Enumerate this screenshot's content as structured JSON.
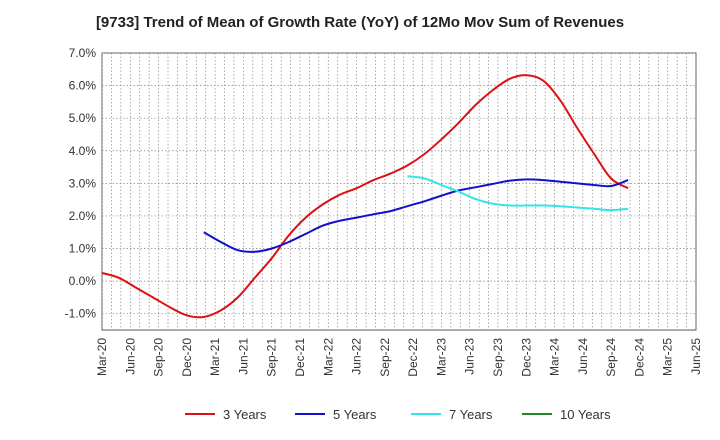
{
  "chart_data": {
    "type": "line",
    "title": "[9733]  Trend of Mean of Growth Rate (YoY) of 12Mo Mov Sum of Revenues",
    "xlabel": "",
    "ylabel": "",
    "x_ticks": [
      "Mar-20",
      "Jun-20",
      "Sep-20",
      "Dec-20",
      "Mar-21",
      "Jun-21",
      "Sep-21",
      "Dec-21",
      "Mar-22",
      "Jun-22",
      "Sep-22",
      "Dec-22",
      "Mar-23",
      "Jun-23",
      "Sep-23",
      "Dec-23",
      "Mar-24",
      "Jun-24",
      "Sep-24",
      "Dec-24",
      "Mar-25",
      "Jun-25"
    ],
    "y_ticks": [
      "-1.0%",
      "0.0%",
      "1.0%",
      "2.0%",
      "3.0%",
      "4.0%",
      "5.0%",
      "6.0%",
      "7.0%"
    ],
    "ylim": [
      -1.5,
      7.0
    ],
    "legend_position": "bottom",
    "series": [
      {
        "name": "3 Years",
        "color": "#dd1111",
        "points": [
          [
            0,
            0.25
          ],
          [
            1,
            0.1
          ],
          [
            2,
            -0.2
          ],
          [
            3,
            -0.5
          ],
          [
            4,
            -0.8
          ],
          [
            5,
            -1.05
          ],
          [
            6,
            -1.1
          ],
          [
            7,
            -0.9
          ],
          [
            8,
            -0.5
          ],
          [
            9,
            0.1
          ],
          [
            10,
            0.7
          ],
          [
            11,
            1.4
          ],
          [
            12,
            1.95
          ],
          [
            13,
            2.35
          ],
          [
            14,
            2.65
          ],
          [
            15,
            2.85
          ],
          [
            16,
            3.1
          ],
          [
            17,
            3.3
          ],
          [
            18,
            3.55
          ],
          [
            19,
            3.9
          ],
          [
            20,
            4.35
          ],
          [
            21,
            4.85
          ],
          [
            22,
            5.4
          ],
          [
            23,
            5.85
          ],
          [
            24,
            6.2
          ],
          [
            25,
            6.32
          ],
          [
            26,
            6.15
          ],
          [
            27,
            5.55
          ],
          [
            28,
            4.7
          ],
          [
            29,
            3.9
          ],
          [
            30,
            3.15
          ],
          [
            31,
            2.85
          ]
        ]
      },
      {
        "name": "5 Years",
        "color": "#1111cc",
        "points": [
          [
            6,
            1.5
          ],
          [
            7,
            1.2
          ],
          [
            8,
            0.95
          ],
          [
            9,
            0.9
          ],
          [
            10,
            1.0
          ],
          [
            11,
            1.2
          ],
          [
            12,
            1.45
          ],
          [
            13,
            1.7
          ],
          [
            14,
            1.85
          ],
          [
            15,
            1.95
          ],
          [
            16,
            2.05
          ],
          [
            17,
            2.15
          ],
          [
            18,
            2.3
          ],
          [
            19,
            2.45
          ],
          [
            20,
            2.62
          ],
          [
            21,
            2.78
          ],
          [
            22,
            2.88
          ],
          [
            23,
            2.98
          ],
          [
            24,
            3.08
          ],
          [
            25,
            3.12
          ],
          [
            26,
            3.1
          ],
          [
            27,
            3.05
          ],
          [
            28,
            3.0
          ],
          [
            29,
            2.95
          ],
          [
            30,
            2.92
          ],
          [
            31,
            3.1
          ]
        ]
      },
      {
        "name": "7 Years",
        "color": "#33e5e5",
        "points": [
          [
            18,
            3.22
          ],
          [
            19,
            3.15
          ],
          [
            20,
            2.95
          ],
          [
            21,
            2.75
          ],
          [
            22,
            2.52
          ],
          [
            23,
            2.38
          ],
          [
            24,
            2.32
          ],
          [
            25,
            2.32
          ],
          [
            26,
            2.32
          ],
          [
            27,
            2.3
          ],
          [
            28,
            2.26
          ],
          [
            29,
            2.22
          ],
          [
            30,
            2.18
          ],
          [
            31,
            2.22
          ]
        ]
      },
      {
        "name": "10 Years",
        "color": "#228822",
        "points": []
      }
    ]
  }
}
